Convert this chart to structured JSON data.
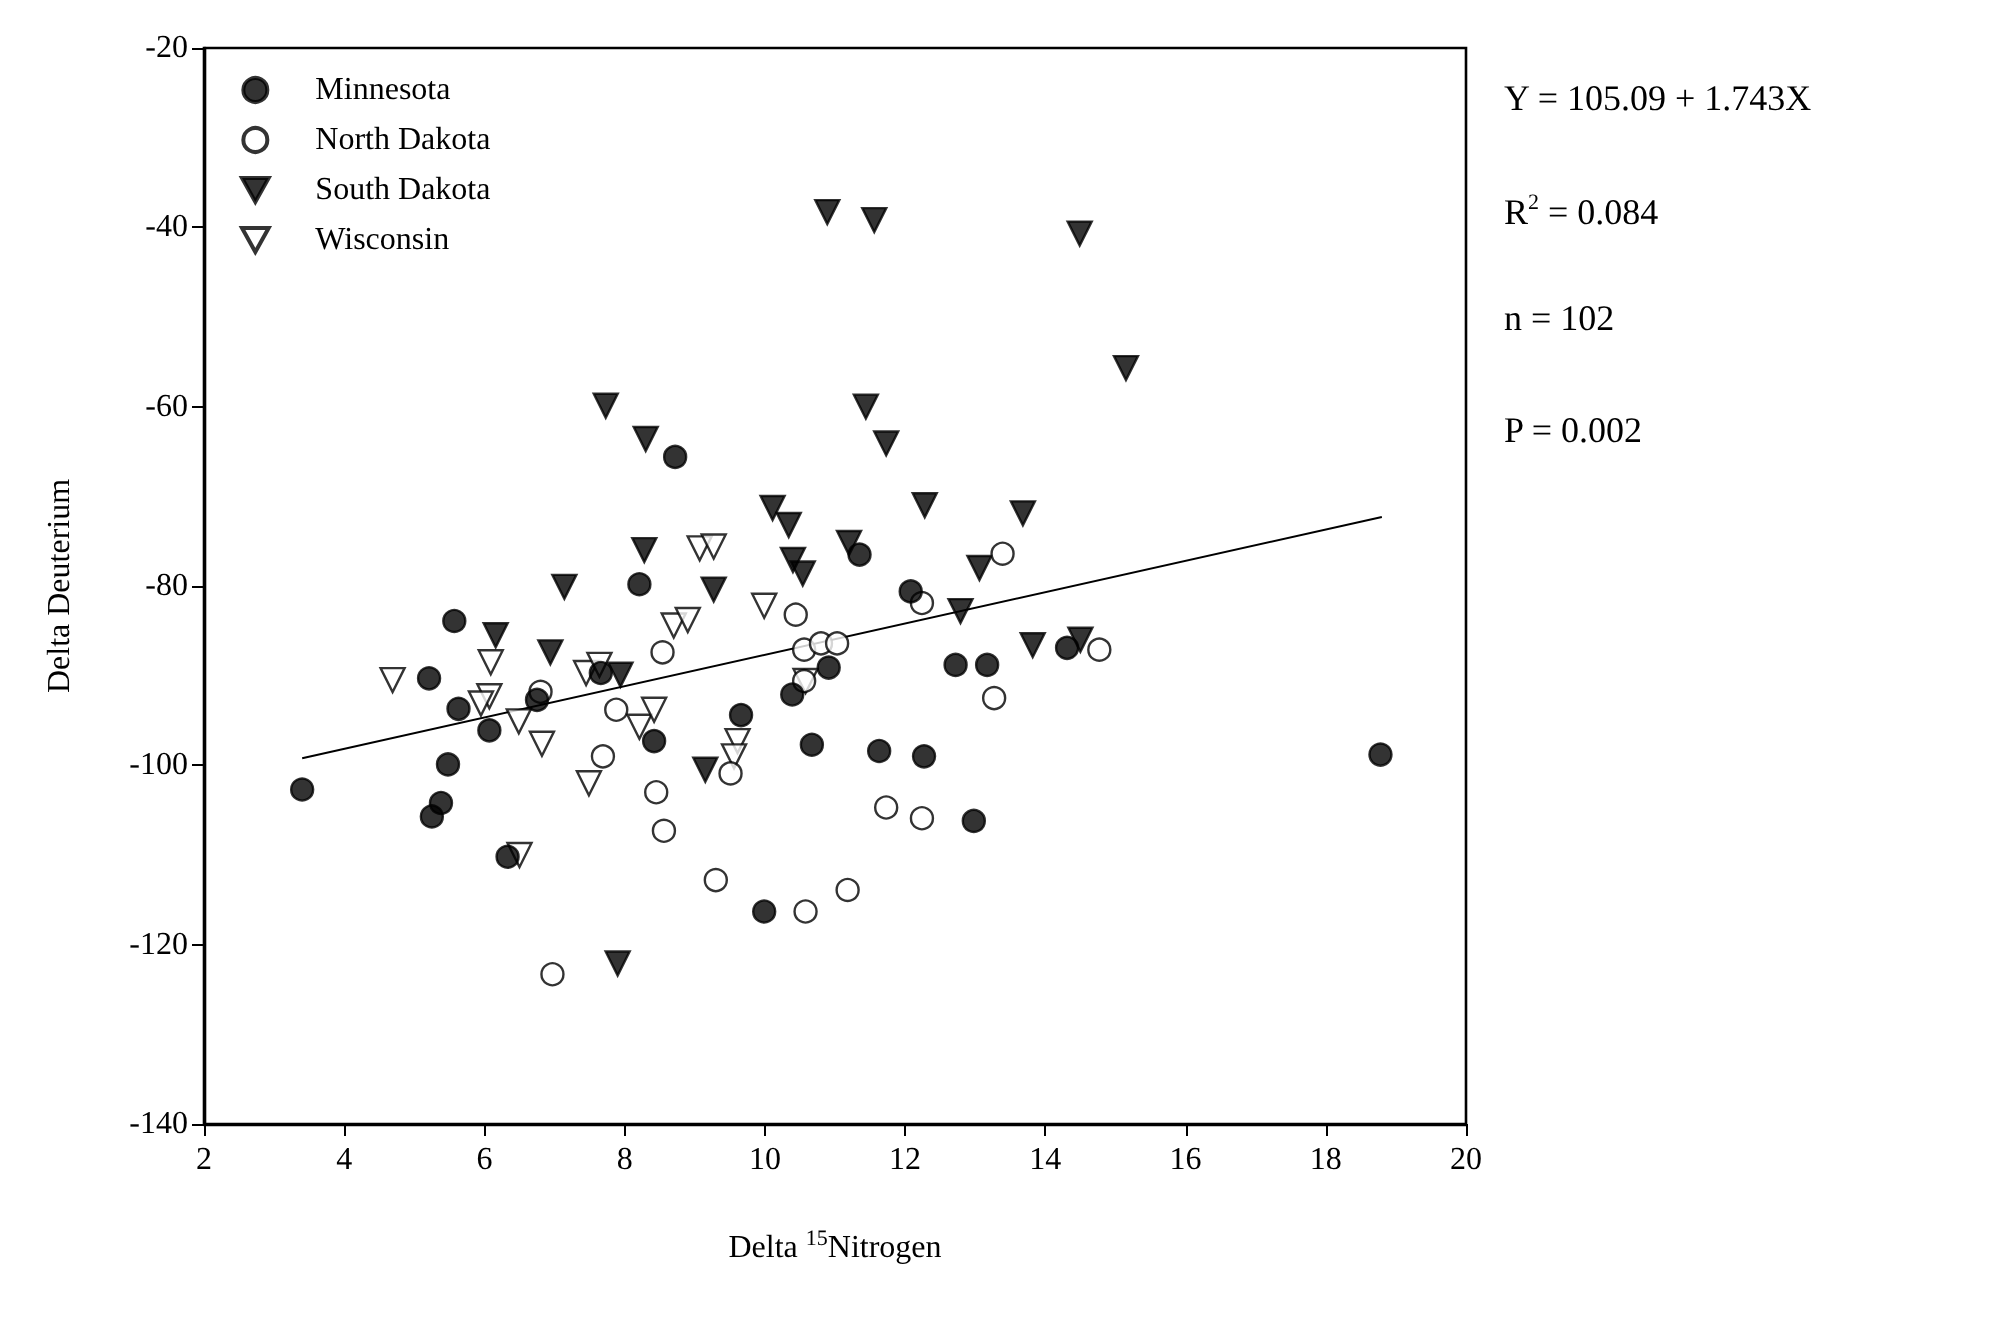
{
  "chart_data": {
    "type": "scatter",
    "xlabel": "Delta $^{15}$Nitrogen",
    "ylabel": "Delta Deuterium",
    "annotations": [
      "Y = 105.09 + 1.743X",
      "R$^{2}$ = 0.084",
      "n = 102",
      "P = 0.002"
    ],
    "xlim": [
      2,
      20
    ],
    "xticks": [
      2,
      4,
      6,
      8,
      10,
      12,
      14,
      16,
      18,
      20
    ],
    "ylim": [
      -140,
      -20
    ],
    "yticks": [
      -140,
      -120,
      -100,
      -80,
      -60,
      -40,
      -20
    ],
    "grid": false,
    "legend": "top left",
    "series": [
      {
        "name": "Minnesota",
        "color": "#000000",
        "marker": "circle",
        "x": [
          3.4,
          5.21,
          5.57,
          5.63,
          6.07,
          5.48,
          5.38,
          5.25,
          6.33,
          8.21,
          6.75,
          8.42,
          7.66,
          8.72,
          11.35,
          12.08,
          10.91,
          10.39,
          9.66,
          10.67,
          11.63,
          12.27,
          12.72,
          13.17,
          12.98,
          9.99,
          14.31,
          18.78
        ],
        "values": [
          -102.7,
          -90.3,
          -83.9,
          -93.7,
          -96.1,
          -99.9,
          -104.2,
          -105.7,
          -110.2,
          -79.8,
          -92.7,
          -97.3,
          -89.7,
          -65.6,
          -76.5,
          -80.6,
          -89.1,
          -92.1,
          -94.4,
          -97.7,
          -98.4,
          -99.0,
          -88.8,
          -88.8,
          -106.2,
          -116.3,
          -86.9,
          -98.8
        ]
      },
      {
        "name": "North Dakota",
        "color": "#ffffff",
        "marker": "circle",
        "x": [
          6.8,
          7.88,
          7.69,
          6.97,
          8.54,
          8.45,
          8.56,
          10.44,
          10.56,
          10.8,
          11.03,
          10.56,
          12.24,
          13.39,
          13.27,
          9.51,
          9.3,
          11.73,
          12.24,
          11.18,
          10.58,
          14.77
        ],
        "values": [
          -91.8,
          -93.8,
          -99.0,
          -123.3,
          -87.4,
          -103.0,
          -107.3,
          -83.2,
          -87.1,
          -86.4,
          -86.4,
          -90.6,
          -81.9,
          -76.4,
          -92.5,
          -100.9,
          -112.8,
          -104.7,
          -105.9,
          -113.9,
          -116.3,
          -87.1
        ]
      },
      {
        "name": "South Dakota",
        "color": "#000000",
        "marker": "triangle",
        "x": [
          7.73,
          8.3,
          8.28,
          7.14,
          6.16,
          6.94,
          7.94,
          7.9,
          9.27,
          10.11,
          10.34,
          10.4,
          10.54,
          11.2,
          11.44,
          11.73,
          12.28,
          13.06,
          12.79,
          13.68,
          13.82,
          9.15,
          14.49,
          15.15,
          14.5,
          10.89,
          11.56
        ],
        "values": [
          -59.9,
          -63.6,
          -76.0,
          -80.1,
          -85.5,
          -87.4,
          -89.9,
          -122.1,
          -80.4,
          -71.3,
          -73.2,
          -77.1,
          -78.6,
          -75.2,
          -60.0,
          -64.1,
          -71.0,
          -78.0,
          -82.8,
          -71.9,
          -86.6,
          -100.5,
          -40.7,
          -55.7,
          -86.0,
          -38.3,
          -39.2
        ]
      },
      {
        "name": "Wisconsin",
        "color": "#ffffff",
        "marker": "triangle",
        "x": [
          4.69,
          6.09,
          6.07,
          5.95,
          6.49,
          6.82,
          7.49,
          6.5,
          7.45,
          7.64,
          8.21,
          8.42,
          9.07,
          9.27,
          8.7,
          8.9,
          9.99,
          10.58,
          9.61,
          9.56
        ],
        "values": [
          -90.5,
          -88.5,
          -92.3,
          -93.1,
          -95.1,
          -97.6,
          -102.0,
          -110.0,
          -89.7,
          -88.8,
          -95.7,
          -93.8,
          -75.8,
          -75.6,
          -84.4,
          -83.8,
          -82.2,
          -90.6,
          -97.3,
          -99.0
        ]
      },
      {
        "type": "line",
        "color": "#000000",
        "marker": "none",
        "line_style": "solid",
        "x": [
          3.4,
          18.8
        ],
        "values": [
          -99.2,
          -72.3
        ]
      }
    ]
  }
}
